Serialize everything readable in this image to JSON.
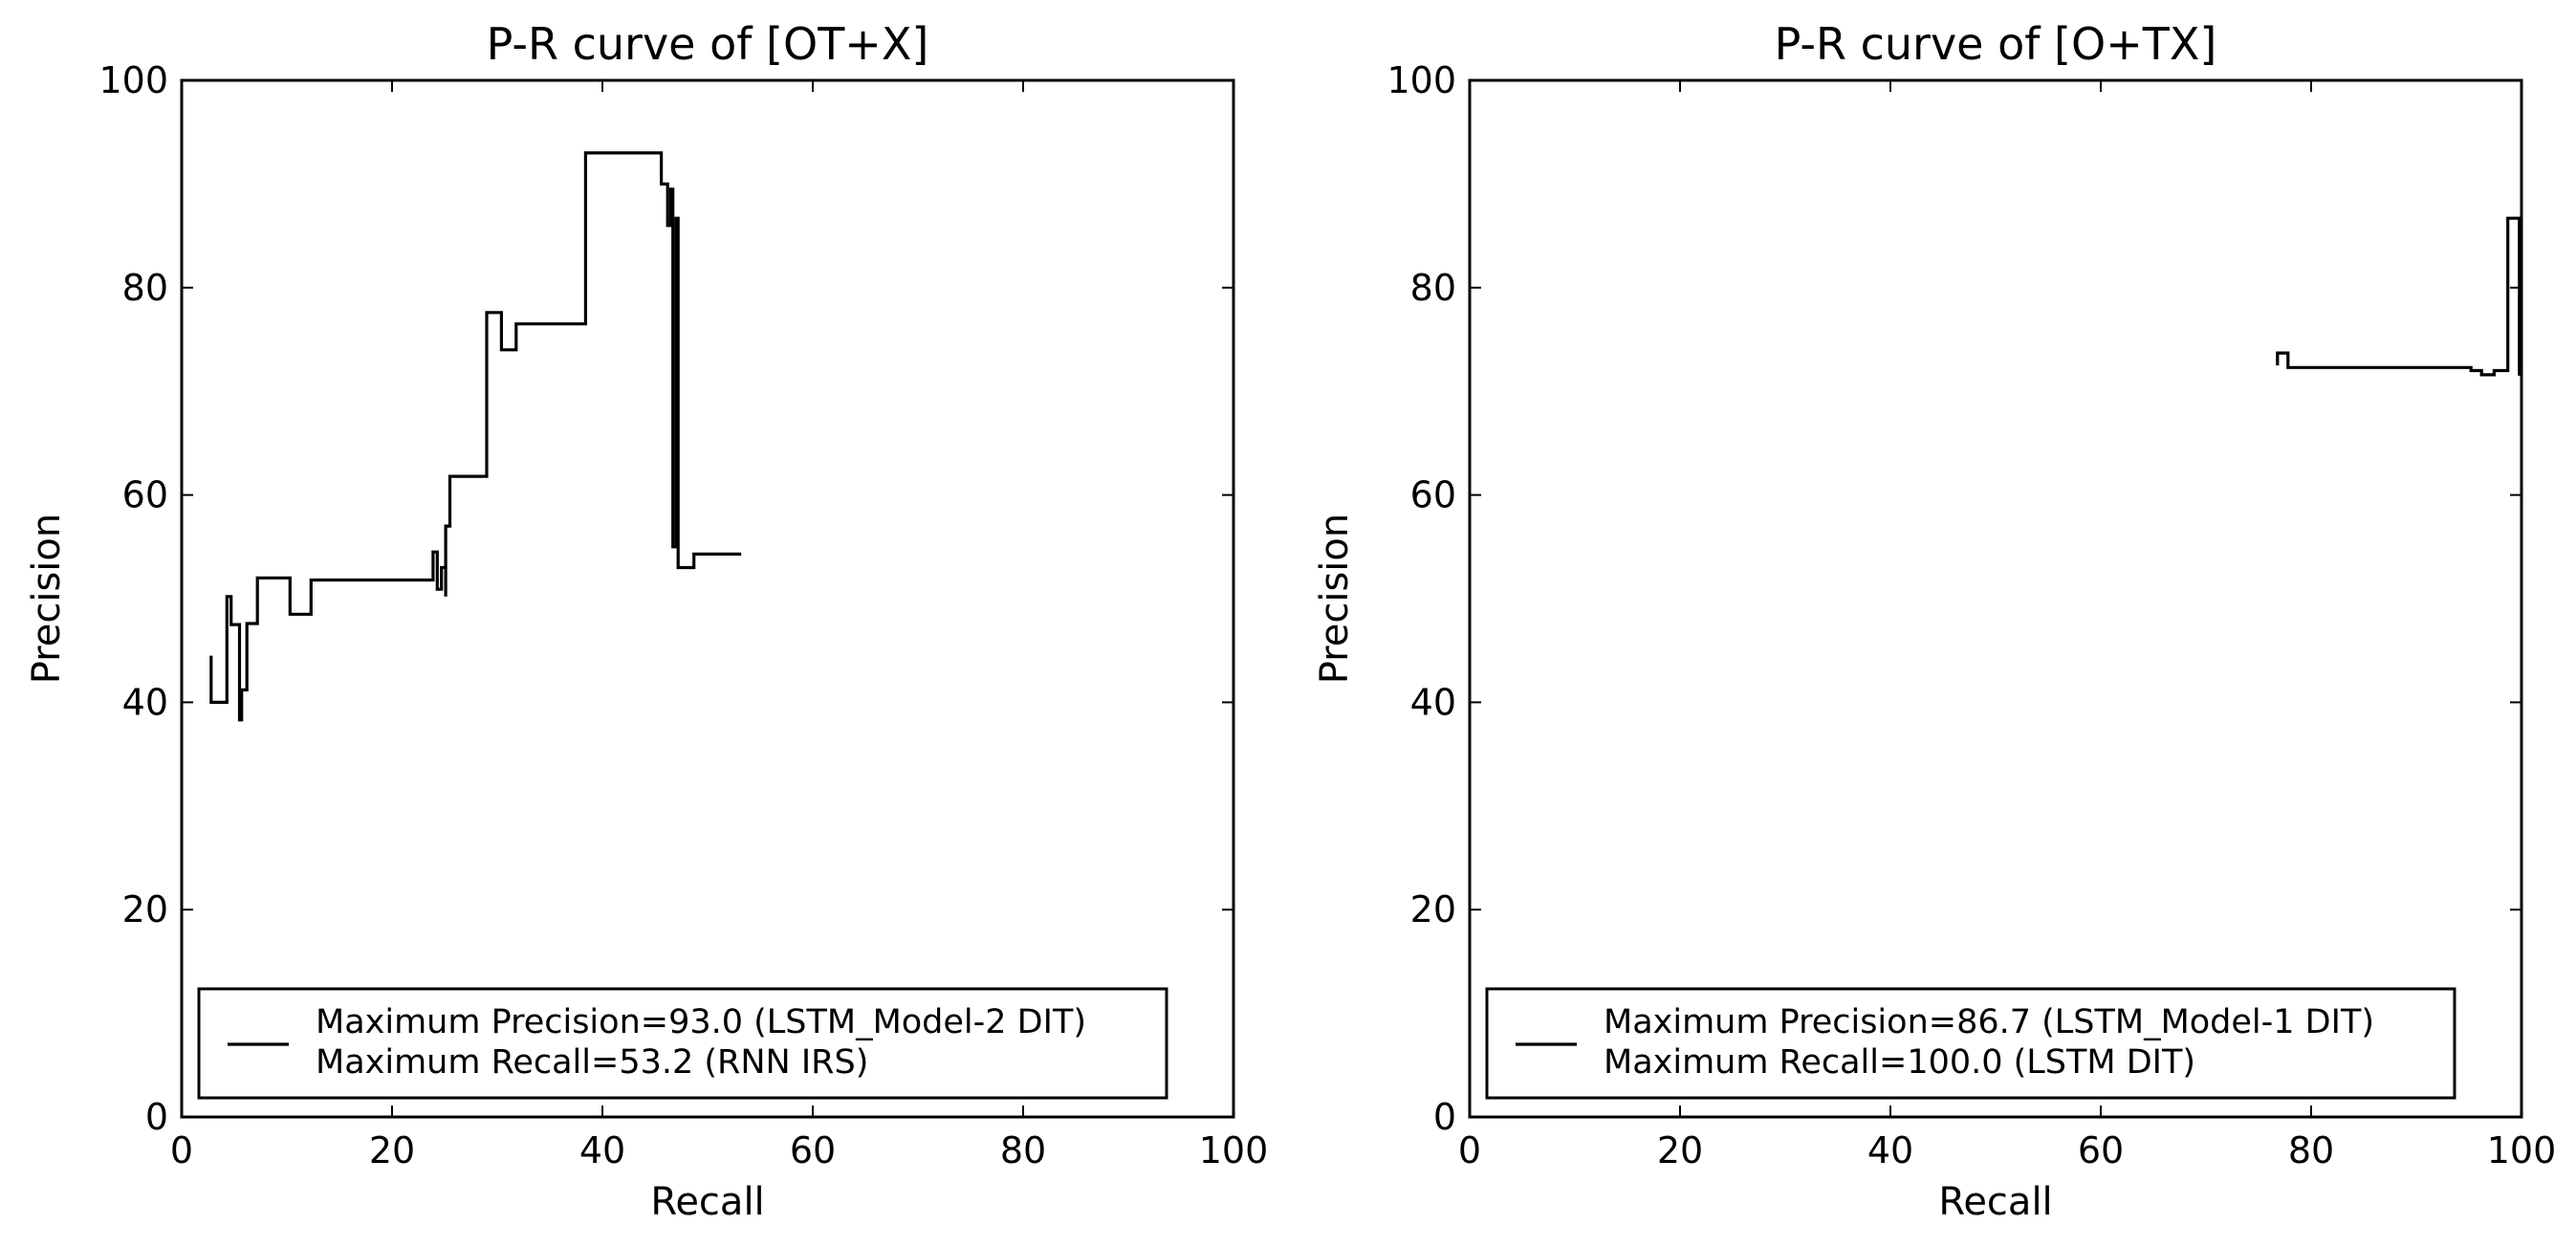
{
  "chart_data": [
    {
      "type": "line",
      "title": "P-R curve of [OT+X]",
      "xlabel": "Recall",
      "ylabel": "Precision",
      "xlim": [
        0,
        100
      ],
      "ylim": [
        0,
        100
      ],
      "xticks": [
        "0",
        "20",
        "40",
        "60",
        "80",
        "100"
      ],
      "yticks": [
        "0",
        "20",
        "40",
        "60",
        "80",
        "100"
      ],
      "grid": false,
      "legend_position": "lower-center",
      "legend": [
        "Maximum Precision=93.0 (LSTM_Model-2 DIT)",
        "Maximum Recall=53.2 (RNN IRS)"
      ],
      "series": [
        {
          "color": "#000000",
          "points": [
            [
              2.8,
              44.5
            ],
            [
              2.8,
              40
            ],
            [
              4.3,
              40
            ],
            [
              4.3,
              50.2
            ],
            [
              4.7,
              50.2
            ],
            [
              4.7,
              47.5
            ],
            [
              5.5,
              47.5
            ],
            [
              5.5,
              38.3
            ],
            [
              5.7,
              38.3
            ],
            [
              5.7,
              41.2
            ],
            [
              6.2,
              41.2
            ],
            [
              6.2,
              47.6
            ],
            [
              7.2,
              47.6
            ],
            [
              7.2,
              52
            ],
            [
              10.3,
              52
            ],
            [
              10.3,
              48.5
            ],
            [
              12.3,
              48.5
            ],
            [
              12.3,
              51.8
            ],
            [
              23.9,
              51.8
            ],
            [
              23.9,
              54.5
            ],
            [
              24.3,
              54.5
            ],
            [
              24.3,
              50.9
            ],
            [
              24.7,
              50.9
            ],
            [
              24.7,
              53
            ],
            [
              25.1,
              53
            ],
            [
              25.1,
              50.2
            ],
            [
              25.1,
              57
            ],
            [
              25.5,
              57
            ],
            [
              25.5,
              61.8
            ],
            [
              29,
              61.8
            ],
            [
              29,
              77.6
            ],
            [
              30.4,
              77.6
            ],
            [
              30.4,
              74
            ],
            [
              31.8,
              74
            ],
            [
              31.8,
              76.5
            ],
            [
              38.4,
              76.5
            ],
            [
              38.4,
              93
            ],
            [
              45.6,
              93
            ],
            [
              45.6,
              90
            ],
            [
              46.2,
              90
            ],
            [
              46.2,
              86
            ],
            [
              46.5,
              86
            ],
            [
              46.5,
              89.5
            ],
            [
              46.7,
              89.5
            ],
            [
              46.7,
              55
            ],
            [
              47,
              55
            ],
            [
              47,
              86.7
            ],
            [
              47.2,
              86.7
            ],
            [
              47.2,
              53
            ],
            [
              48.7,
              53
            ],
            [
              48.7,
              54.3
            ],
            [
              53.2,
              54.3
            ]
          ]
        }
      ]
    },
    {
      "type": "line",
      "title": "P-R curve of [O+TX]",
      "xlabel": "Recall",
      "ylabel": "Precision",
      "xlim": [
        0,
        100
      ],
      "ylim": [
        0,
        100
      ],
      "xticks": [
        "0",
        "20",
        "40",
        "60",
        "80",
        "100"
      ],
      "yticks": [
        "0",
        "20",
        "40",
        "60",
        "80",
        "100"
      ],
      "grid": false,
      "legend_position": "lower-center",
      "legend": [
        "Maximum Precision=86.7 (LSTM_Model-1 DIT)",
        "Maximum Recall=100.0 (LSTM DIT)"
      ],
      "series": [
        {
          "color": "#000000",
          "points": [
            [
              76.8,
              72.5
            ],
            [
              76.8,
              73.7
            ],
            [
              77.8,
              73.7
            ],
            [
              77.8,
              72.3
            ],
            [
              95.2,
              72.3
            ],
            [
              95.2,
              72
            ],
            [
              96.2,
              72
            ],
            [
              96.2,
              71.6
            ],
            [
              97.4,
              71.6
            ],
            [
              97.4,
              72
            ],
            [
              98.7,
              72
            ],
            [
              98.7,
              86.7
            ],
            [
              99.8,
              86.7
            ],
            [
              99.8,
              71.5
            ]
          ]
        }
      ]
    }
  ]
}
